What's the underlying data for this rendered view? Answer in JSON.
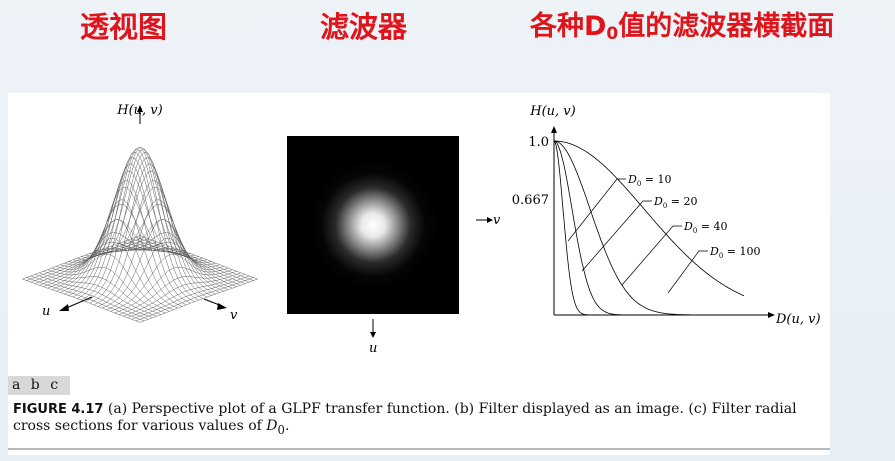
{
  "headings": {
    "perspective": "透视图",
    "filter": "滤波器",
    "cross_section_prefix": "各种D",
    "cross_section_sub": "0",
    "cross_section_suffix": "值的滤波器横截面"
  },
  "panel_a": {
    "axis_h": "H(u, v)",
    "axis_u": "u",
    "axis_v": "v"
  },
  "panel_b": {
    "axis_u": "u",
    "axis_v": "v"
  },
  "panel_c": {
    "axis_h": "H(u, v)",
    "axis_d": "D(u, v)",
    "tick_top": "1.0",
    "tick_mid": "0.667",
    "curves": [
      {
        "label": "= 10",
        "d0": 10
      },
      {
        "label": "= 20",
        "d0": 20
      },
      {
        "label": "= 40",
        "d0": 40
      },
      {
        "label": "= 100",
        "d0": 100
      }
    ]
  },
  "panel_tags": "a b c",
  "caption": {
    "figure_label": "FIGURE 4.17",
    "text": "(a) Perspective plot of a GLPF transfer function. (b) Filter displayed as an image. (c) Filter radial cross sections for various values of",
    "d0_symbol": "D",
    "d0_sub": "0",
    "end": "."
  }
}
